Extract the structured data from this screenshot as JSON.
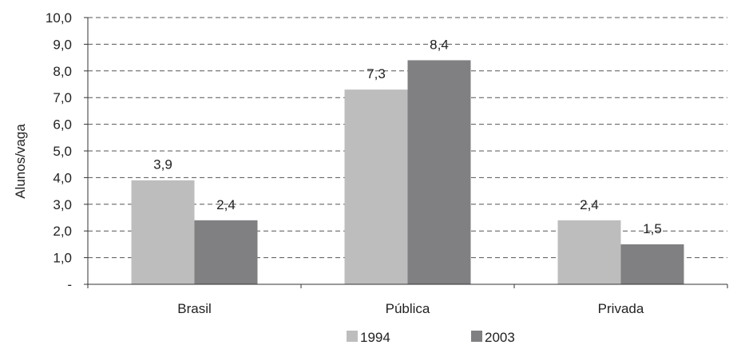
{
  "chart_data": {
    "type": "bar",
    "categories": [
      "Brasil",
      "Pública",
      "Privada"
    ],
    "series": [
      {
        "name": "1994",
        "values": [
          3.9,
          7.3,
          2.4
        ],
        "labels": [
          "3,9",
          "7,3",
          "2,4"
        ],
        "color": "#bdbdbd"
      },
      {
        "name": "2003",
        "values": [
          2.4,
          8.4,
          1.5
        ],
        "labels": [
          "2,4",
          "8,4",
          "1,5"
        ],
        "color": "#808083"
      }
    ],
    "ylabel": "Alunos/vaga",
    "ylim": [
      0,
      10
    ],
    "yticks": [
      0,
      1,
      2,
      3,
      4,
      5,
      6,
      7,
      8,
      9,
      10
    ],
    "ytick_labels": [
      "-",
      "1,0",
      "2,0",
      "3,0",
      "4,0",
      "5,0",
      "6,0",
      "7,0",
      "8,0",
      "9,0",
      "10,0"
    ],
    "grid": true,
    "legend_position": "bottom"
  }
}
